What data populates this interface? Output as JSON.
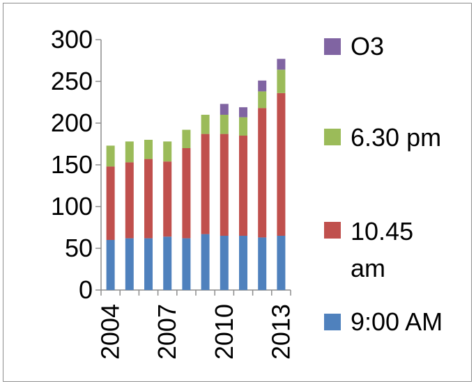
{
  "chart_data": {
    "type": "bar",
    "stacked": true,
    "categories": [
      "2004",
      "2005",
      "2006",
      "2007",
      "2008",
      "2009",
      "2010",
      "2011",
      "2012",
      "2013"
    ],
    "x_tick_labels": [
      "2004",
      "2007",
      "2010",
      "2013"
    ],
    "series": [
      {
        "name": "9:00 AM",
        "color": "#4f81bd",
        "values": [
          60,
          62,
          62,
          64,
          62,
          67,
          65,
          65,
          63,
          65
        ]
      },
      {
        "name": "10.45 am",
        "color": "#c0504d",
        "values": [
          88,
          91,
          95,
          90,
          108,
          120,
          122,
          120,
          155,
          171
        ]
      },
      {
        "name": "6.30 pm",
        "color": "#9bbb59",
        "values": [
          25,
          25,
          23,
          24,
          22,
          23,
          23,
          22,
          20,
          28
        ]
      },
      {
        "name": "O3",
        "color": "#8064a2",
        "values": [
          0,
          0,
          0,
          0,
          0,
          0,
          13,
          12,
          13,
          13
        ]
      }
    ],
    "ylim": [
      0,
      300
    ],
    "y_ticks": [
      0,
      50,
      100,
      150,
      200,
      250,
      300
    ],
    "grid": false,
    "legend_position": "right",
    "legend_order": [
      "O3",
      "6.30 pm",
      "10.45 am",
      "9:00 AM"
    ],
    "xlabel": "",
    "ylabel": "",
    "title": ""
  }
}
